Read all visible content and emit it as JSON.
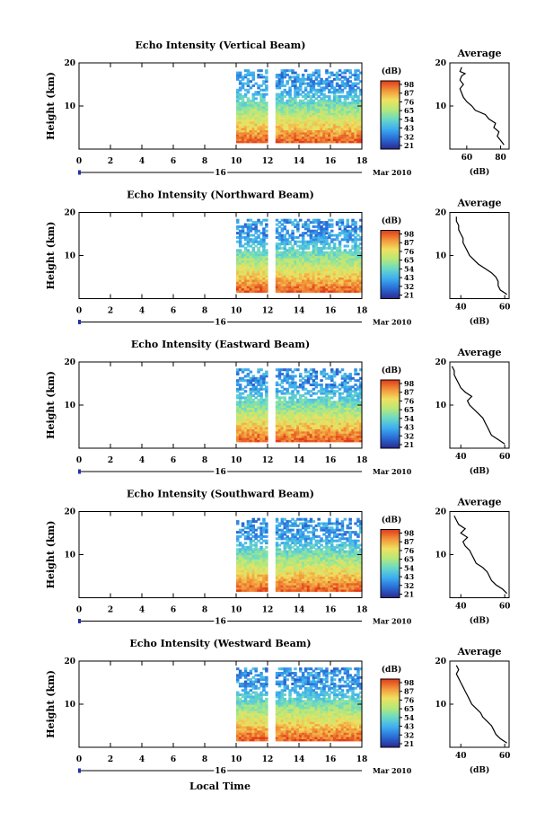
{
  "footer": {
    "xlabel": "Local Time"
  },
  "common": {
    "x_ticks": [
      "0",
      "2",
      "4",
      "6",
      "8",
      "10",
      "12",
      "14",
      "16",
      "18"
    ],
    "y_label": "Height (km)",
    "y_ticks": [
      "20",
      "10"
    ],
    "date_day": "16",
    "date_month": "Mar 2010",
    "colorbar_unit": "(dB)",
    "colorbar_ticks": [
      "98",
      "87",
      "76",
      "65",
      "54",
      "43",
      "32",
      "21"
    ],
    "avg_title": "Average",
    "avg_xlabel": "(dB)"
  },
  "panels": [
    {
      "title": "Echo Intensity (Vertical Beam)",
      "avg_ticks": [
        "60",
        "80"
      ]
    },
    {
      "title": "Echo Intensity (Northward Beam)",
      "avg_ticks": [
        "40",
        "60"
      ]
    },
    {
      "title": "Echo Intensity (Eastward Beam)",
      "avg_ticks": [
        "40",
        "60"
      ]
    },
    {
      "title": "Echo Intensity (Southward Beam)",
      "avg_ticks": [
        "40",
        "60"
      ]
    },
    {
      "title": "Echo Intensity (Westward Beam)",
      "avg_ticks": [
        "40",
        "60"
      ]
    }
  ],
  "chart_data": [
    {
      "type": "heatmap",
      "title": "Echo Intensity (Vertical Beam)",
      "xlabel": "",
      "ylabel": "Height (km)",
      "x_range": [
        0,
        18
      ],
      "y_range": [
        0,
        20
      ],
      "data_time_range": [
        10,
        18
      ],
      "gap_time": 12.3,
      "units": "dB",
      "colorbar_range": [
        21,
        98
      ]
    },
    {
      "type": "line",
      "title": "Average",
      "xlabel": "(dB)",
      "ylabel": "Height (km)",
      "x_range": [
        50,
        85
      ],
      "y_range": [
        0,
        20
      ],
      "points": [
        [
          82,
          1
        ],
        [
          80,
          2
        ],
        [
          78,
          3
        ],
        [
          79,
          4
        ],
        [
          76,
          5
        ],
        [
          77,
          6
        ],
        [
          73,
          7
        ],
        [
          71,
          8
        ],
        [
          65,
          9
        ],
        [
          63,
          10
        ],
        [
          60,
          11
        ],
        [
          58,
          12
        ],
        [
          57,
          13
        ],
        [
          56,
          14
        ],
        [
          58,
          15
        ],
        [
          56,
          16
        ],
        [
          57,
          17
        ],
        [
          59,
          17.5
        ],
        [
          56,
          18
        ],
        [
          57,
          19
        ]
      ]
    },
    {
      "type": "heatmap",
      "title": "Echo Intensity (Northward Beam)",
      "xlabel": "",
      "ylabel": "Height (km)",
      "x_range": [
        0,
        18
      ],
      "y_range": [
        0,
        20
      ],
      "data_time_range": [
        10,
        18
      ],
      "gap_time": 12.3,
      "units": "dB",
      "colorbar_range": [
        21,
        98
      ]
    },
    {
      "type": "line",
      "title": "Average",
      "xlabel": "(dB)",
      "ylabel": "Height (km)",
      "x_range": [
        35,
        62
      ],
      "y_range": [
        0,
        20
      ],
      "points": [
        [
          61,
          1
        ],
        [
          58,
          2
        ],
        [
          57,
          3
        ],
        [
          57,
          4
        ],
        [
          56,
          5
        ],
        [
          54,
          6
        ],
        [
          51,
          7
        ],
        [
          48,
          8
        ],
        [
          46,
          9
        ],
        [
          44,
          10
        ],
        [
          43,
          11
        ],
        [
          42,
          12
        ],
        [
          41,
          13
        ],
        [
          41,
          14
        ],
        [
          40,
          15
        ],
        [
          39,
          16
        ],
        [
          39,
          17
        ],
        [
          38,
          18
        ],
        [
          38,
          19
        ]
      ]
    },
    {
      "type": "heatmap",
      "title": "Echo Intensity (Eastward Beam)",
      "xlabel": "",
      "ylabel": "Height (km)",
      "x_range": [
        0,
        18
      ],
      "y_range": [
        0,
        20
      ],
      "data_time_range": [
        10,
        18
      ],
      "gap_time": 12.3,
      "units": "dB",
      "colorbar_range": [
        21,
        98
      ]
    },
    {
      "type": "line",
      "title": "Average",
      "xlabel": "(dB)",
      "ylabel": "Height (km)",
      "x_range": [
        35,
        62
      ],
      "y_range": [
        0,
        20
      ],
      "points": [
        [
          60,
          1
        ],
        [
          57,
          2
        ],
        [
          54,
          3
        ],
        [
          53,
          4
        ],
        [
          52,
          5
        ],
        [
          51,
          6
        ],
        [
          50,
          7
        ],
        [
          48,
          8
        ],
        [
          46,
          9
        ],
        [
          44,
          10
        ],
        [
          43,
          11
        ],
        [
          45,
          12
        ],
        [
          42,
          13
        ],
        [
          40,
          14
        ],
        [
          39,
          15
        ],
        [
          38,
          16
        ],
        [
          37,
          17
        ],
        [
          37,
          18
        ],
        [
          36,
          19
        ]
      ]
    },
    {
      "type": "heatmap",
      "title": "Echo Intensity (Southward Beam)",
      "xlabel": "",
      "ylabel": "Height (km)",
      "x_range": [
        0,
        18
      ],
      "y_range": [
        0,
        20
      ],
      "data_time_range": [
        10,
        18
      ],
      "gap_time": 12.3,
      "units": "dB",
      "colorbar_range": [
        21,
        98
      ]
    },
    {
      "type": "line",
      "title": "Average",
      "xlabel": "(dB)",
      "ylabel": "Height (km)",
      "x_range": [
        35,
        62
      ],
      "y_range": [
        0,
        20
      ],
      "points": [
        [
          61,
          1
        ],
        [
          59,
          2
        ],
        [
          56,
          3
        ],
        [
          54,
          4
        ],
        [
          53,
          5
        ],
        [
          52,
          6
        ],
        [
          50,
          7
        ],
        [
          47,
          8
        ],
        [
          46,
          9
        ],
        [
          45,
          10
        ],
        [
          44,
          11
        ],
        [
          42,
          12
        ],
        [
          41,
          13
        ],
        [
          43,
          14
        ],
        [
          40,
          15
        ],
        [
          42,
          16
        ],
        [
          39,
          17
        ],
        [
          38,
          18
        ],
        [
          37,
          19
        ]
      ]
    },
    {
      "type": "heatmap",
      "title": "Echo Intensity (Westward Beam)",
      "xlabel": "",
      "ylabel": "Height (km)",
      "x_range": [
        0,
        18
      ],
      "y_range": [
        0,
        20
      ],
      "data_time_range": [
        10,
        18
      ],
      "gap_time": 12.3,
      "units": "dB",
      "colorbar_range": [
        21,
        98
      ]
    },
    {
      "type": "line",
      "title": "Average",
      "xlabel": "(dB)",
      "ylabel": "Height (km)",
      "x_range": [
        35,
        62
      ],
      "y_range": [
        0,
        20
      ],
      "points": [
        [
          61,
          1
        ],
        [
          58,
          2
        ],
        [
          56,
          3
        ],
        [
          55,
          4
        ],
        [
          54,
          5
        ],
        [
          52,
          6
        ],
        [
          50,
          7
        ],
        [
          49,
          8
        ],
        [
          47,
          9
        ],
        [
          45,
          10
        ],
        [
          44,
          11
        ],
        [
          43,
          12
        ],
        [
          42,
          13
        ],
        [
          41,
          14
        ],
        [
          40,
          15
        ],
        [
          39,
          16
        ],
        [
          38,
          17
        ],
        [
          39,
          18
        ],
        [
          38,
          19
        ]
      ]
    }
  ]
}
